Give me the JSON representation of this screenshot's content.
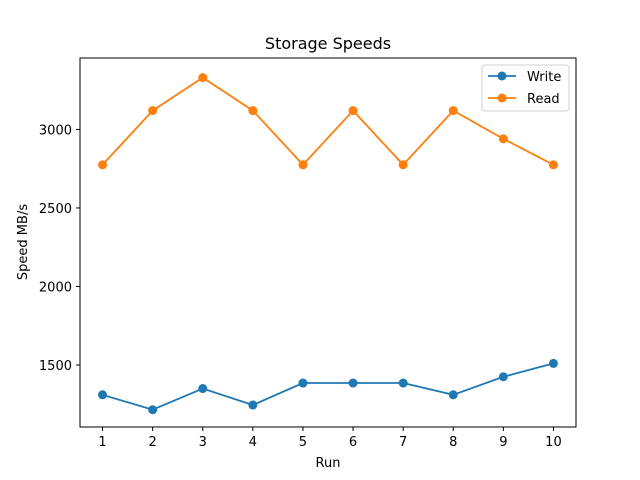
{
  "chart_data": {
    "type": "line",
    "title": "Storage Speeds",
    "xlabel": "Run",
    "ylabel": "Speed MB/s",
    "x": [
      1,
      2,
      3,
      4,
      5,
      6,
      7,
      8,
      9,
      10
    ],
    "x_ticks": [
      "1",
      "2",
      "3",
      "4",
      "5",
      "6",
      "7",
      "8",
      "9",
      "10"
    ],
    "y_ticks": [
      "1500",
      "2000",
      "2500",
      "3000"
    ],
    "y_tick_values": [
      1500,
      2000,
      2500,
      3000
    ],
    "xlim": [
      0.55,
      10.45
    ],
    "ylim": [
      1105,
      3455
    ],
    "grid": false,
    "legend_position": "upper right",
    "series": [
      {
        "name": "Write",
        "color": "#1f77b4",
        "marker": "circle",
        "values": [
          1310,
          1215,
          1350,
          1245,
          1385,
          1385,
          1385,
          1310,
          1425,
          1510
        ]
      },
      {
        "name": "Read",
        "color": "#ff7f0e",
        "marker": "circle",
        "values": [
          2775,
          3120,
          3330,
          3120,
          2775,
          3120,
          2775,
          3120,
          2940,
          2775
        ]
      }
    ]
  }
}
